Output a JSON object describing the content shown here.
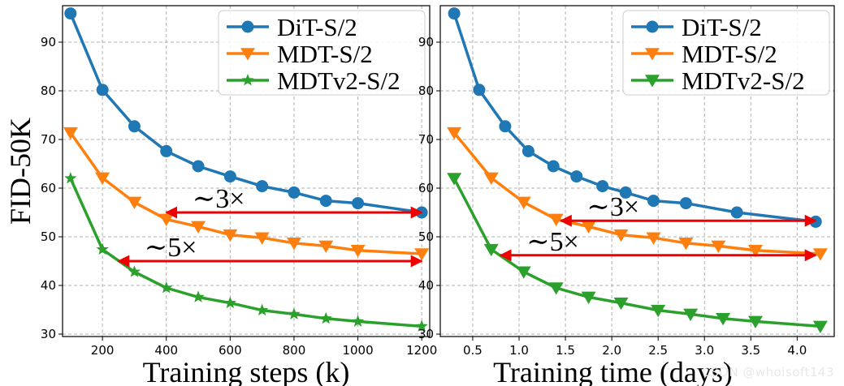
{
  "chart_data": [
    {
      "type": "line",
      "title": "",
      "xlabel": "Training steps (k)",
      "ylabel": "FID-50K",
      "xlim": [
        75,
        1225
      ],
      "ylim": [
        29.5,
        97.5
      ],
      "xticks": [
        200,
        400,
        600,
        800,
        1000,
        1200
      ],
      "yticks": [
        30,
        40,
        50,
        60,
        70,
        80,
        90
      ],
      "grid": true,
      "legend": "top-right",
      "series": [
        {
          "name": "DiT-S/2",
          "color": "#1f77b4",
          "marker": "circle",
          "x": [
            100,
            200,
            300,
            400,
            500,
            600,
            700,
            800,
            900,
            1000,
            1200
          ],
          "y": [
            95.9,
            80.2,
            72.7,
            67.6,
            64.5,
            62.4,
            60.4,
            59.1,
            57.4,
            56.9,
            55.0
          ]
        },
        {
          "name": "MDT-S/2",
          "color": "#ff7f0e",
          "marker": "triangle-down",
          "x": [
            100,
            200,
            300,
            400,
            500,
            600,
            700,
            800,
            900,
            1000,
            1200
          ],
          "y": [
            71.4,
            62.1,
            57.1,
            53.6,
            52.1,
            50.4,
            49.8,
            48.7,
            48.1,
            47.2,
            46.5
          ]
        },
        {
          "name": "MDTv2-S/2",
          "color": "#2ca02c",
          "marker": "star",
          "x": [
            100,
            200,
            300,
            400,
            500,
            600,
            700,
            800,
            900,
            1000,
            1200
          ],
          "y": [
            62.0,
            47.4,
            42.8,
            39.5,
            37.6,
            36.4,
            34.9,
            34.1,
            33.2,
            32.6,
            31.6
          ]
        }
      ],
      "annotations": [
        {
          "text": "∼3×",
          "from": [
            400,
            55.0
          ],
          "to": [
            1200,
            55.0
          ]
        },
        {
          "text": "∼5×",
          "from": [
            250,
            45.0
          ],
          "to": [
            1200,
            45.0
          ]
        }
      ]
    },
    {
      "type": "line",
      "title": "",
      "xlabel": "Training time (days)",
      "ylabel": "",
      "xlim": [
        0.15,
        4.4
      ],
      "ylim": [
        29.5,
        97.5
      ],
      "xticks": [
        0.5,
        1.0,
        1.5,
        2.0,
        2.5,
        3.0,
        3.5,
        4.0
      ],
      "yticks": [
        30,
        40,
        50,
        60,
        70,
        80,
        90
      ],
      "grid": true,
      "legend": "top-right",
      "series": [
        {
          "name": "DiT-S/2",
          "color": "#1f77b4",
          "marker": "circle",
          "x": [
            0.3,
            0.57,
            0.85,
            1.1,
            1.37,
            1.62,
            1.9,
            2.15,
            2.45,
            2.8,
            3.35,
            4.2
          ],
          "y": [
            95.9,
            80.2,
            72.7,
            67.6,
            64.5,
            62.4,
            60.4,
            59.1,
            57.4,
            56.9,
            55.0,
            53.1
          ]
        },
        {
          "name": "MDT-S/2",
          "color": "#ff7f0e",
          "marker": "triangle-down",
          "x": [
            0.3,
            0.7,
            1.05,
            1.4,
            1.75,
            2.1,
            2.45,
            2.8,
            3.15,
            3.55,
            4.25
          ],
          "y": [
            71.4,
            62.1,
            57.1,
            53.6,
            52.1,
            50.4,
            49.8,
            48.7,
            48.1,
            47.2,
            46.5
          ]
        },
        {
          "name": "MDTv2-S/2",
          "color": "#2ca02c",
          "marker": "triangle-down",
          "x": [
            0.3,
            0.7,
            1.05,
            1.4,
            1.75,
            2.1,
            2.5,
            2.85,
            3.2,
            3.55,
            4.25
          ],
          "y": [
            62.0,
            47.4,
            42.8,
            39.5,
            37.6,
            36.4,
            34.9,
            34.1,
            33.2,
            32.6,
            31.6
          ]
        }
      ],
      "annotations": [
        {
          "text": "∼3×",
          "from": [
            1.45,
            53.3
          ],
          "to": [
            4.2,
            53.3
          ]
        },
        {
          "text": "∼5×",
          "from": [
            0.8,
            46.2
          ],
          "to": [
            4.2,
            46.2
          ]
        }
      ]
    }
  ],
  "watermark": "CSDN @whoisoft143"
}
